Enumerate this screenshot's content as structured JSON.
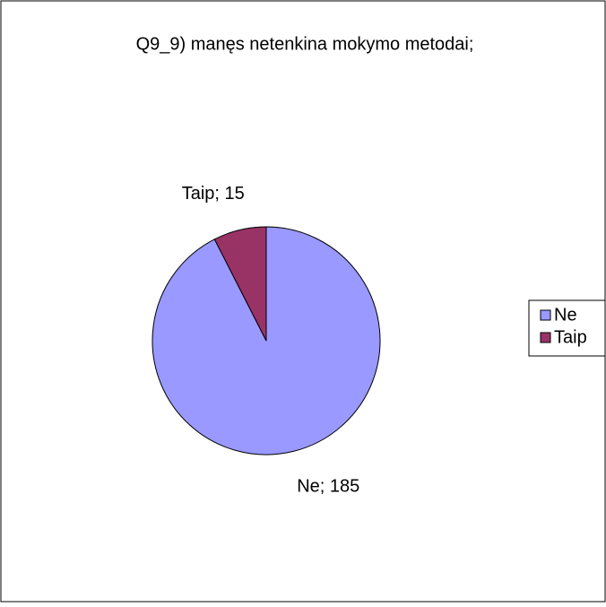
{
  "chart_data": {
    "type": "pie",
    "title": "Q9_9) manęs netenkina mokymo metodai;",
    "categories": [
      "Ne",
      "Taip"
    ],
    "values": [
      185,
      15
    ],
    "value_labels": [
      "Ne; 185",
      "Taip; 15"
    ],
    "colors": [
      "#9999ff",
      "#993366"
    ],
    "legend": "right"
  }
}
